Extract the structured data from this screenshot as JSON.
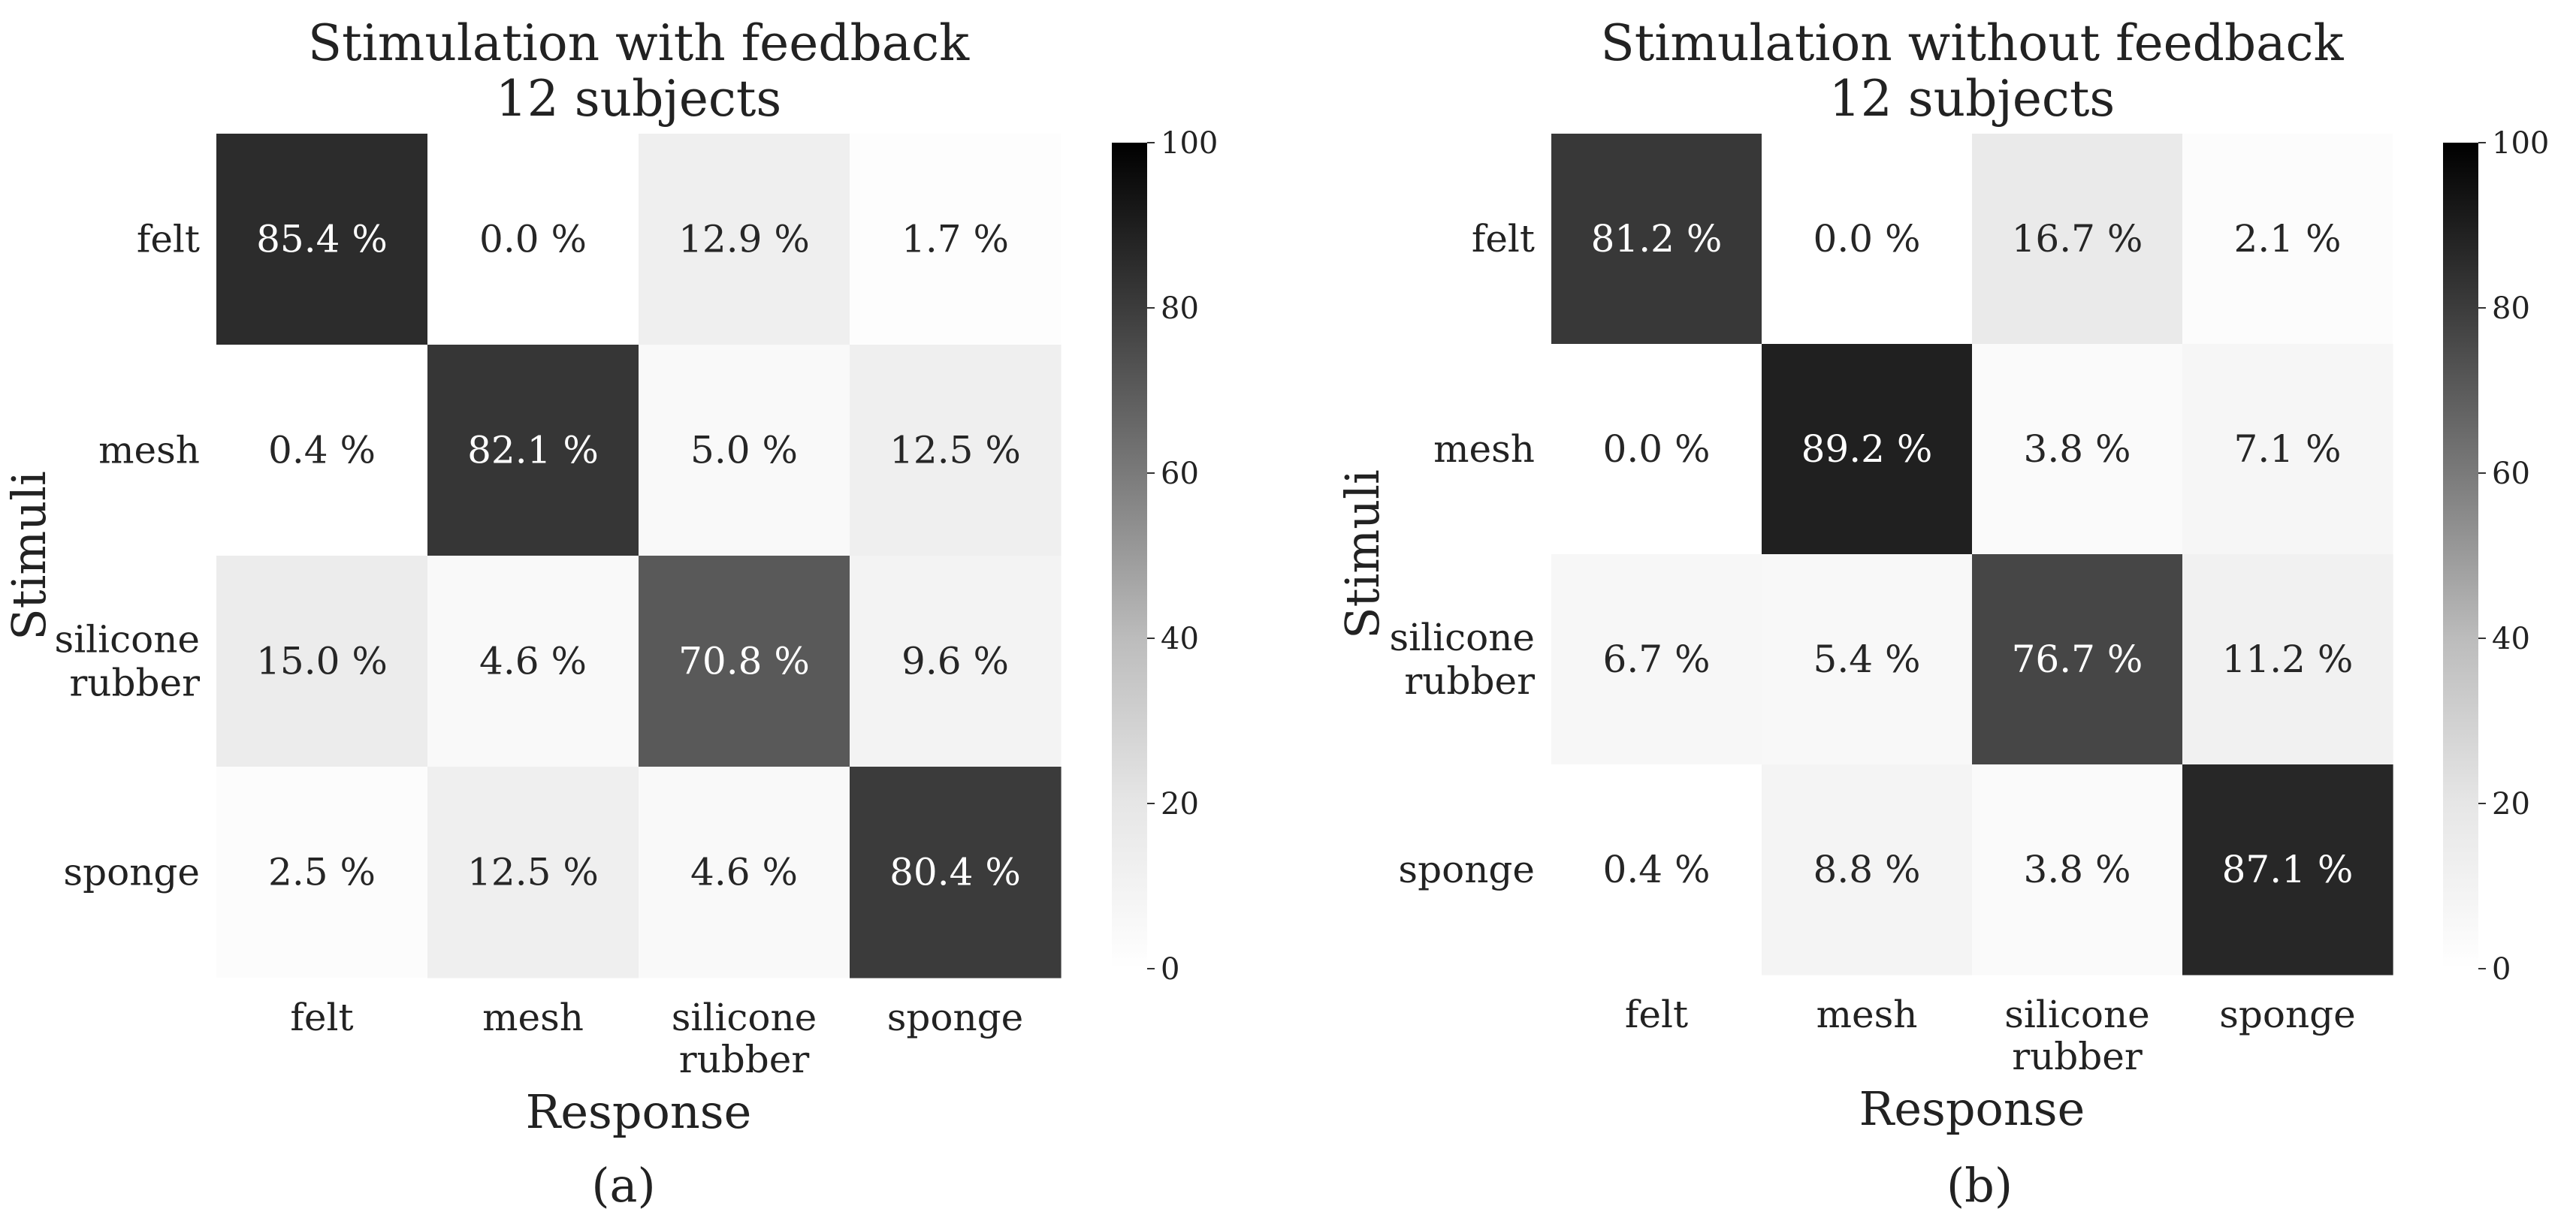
{
  "chart_data": [
    {
      "type": "heatmap",
      "title_lines": [
        "Stimulation with feedback",
        "12 subjects"
      ],
      "xlabel": "Response",
      "ylabel": "Stimuli",
      "categories": [
        {
          "key": "felt",
          "lines": [
            "felt"
          ]
        },
        {
          "key": "mesh",
          "lines": [
            "mesh"
          ]
        },
        {
          "key": "silicone rubber",
          "lines": [
            "silicone",
            "rubber"
          ]
        },
        {
          "key": "sponge",
          "lines": [
            "sponge"
          ]
        }
      ],
      "values": [
        [
          85.4,
          0.0,
          12.9,
          1.7
        ],
        [
          0.4,
          82.1,
          5.0,
          12.5
        ],
        [
          15.0,
          4.6,
          70.8,
          9.6
        ],
        [
          2.5,
          12.5,
          4.6,
          80.4
        ]
      ],
      "value_suffix": " %",
      "colorbar": {
        "min": 0,
        "max": 100,
        "ticks": [
          0,
          20,
          40,
          60,
          80,
          100
        ]
      },
      "caption": "(a)"
    },
    {
      "type": "heatmap",
      "title_lines": [
        "Stimulation without feedback",
        "12 subjects"
      ],
      "xlabel": "Response",
      "ylabel": "Stimuli",
      "categories": [
        {
          "key": "felt",
          "lines": [
            "felt"
          ]
        },
        {
          "key": "mesh",
          "lines": [
            "mesh"
          ]
        },
        {
          "key": "silicone rubber",
          "lines": [
            "silicone",
            "rubber"
          ]
        },
        {
          "key": "sponge",
          "lines": [
            "sponge"
          ]
        }
      ],
      "values": [
        [
          81.2,
          0.0,
          16.7,
          2.1
        ],
        [
          0.0,
          89.2,
          3.8,
          7.1
        ],
        [
          6.7,
          5.4,
          76.7,
          11.2
        ],
        [
          0.4,
          8.8,
          3.8,
          87.1
        ]
      ],
      "value_suffix": " %",
      "colorbar": {
        "min": 0,
        "max": 100,
        "ticks": [
          0,
          20,
          40,
          60,
          80,
          100
        ]
      },
      "caption": "(b)"
    }
  ]
}
